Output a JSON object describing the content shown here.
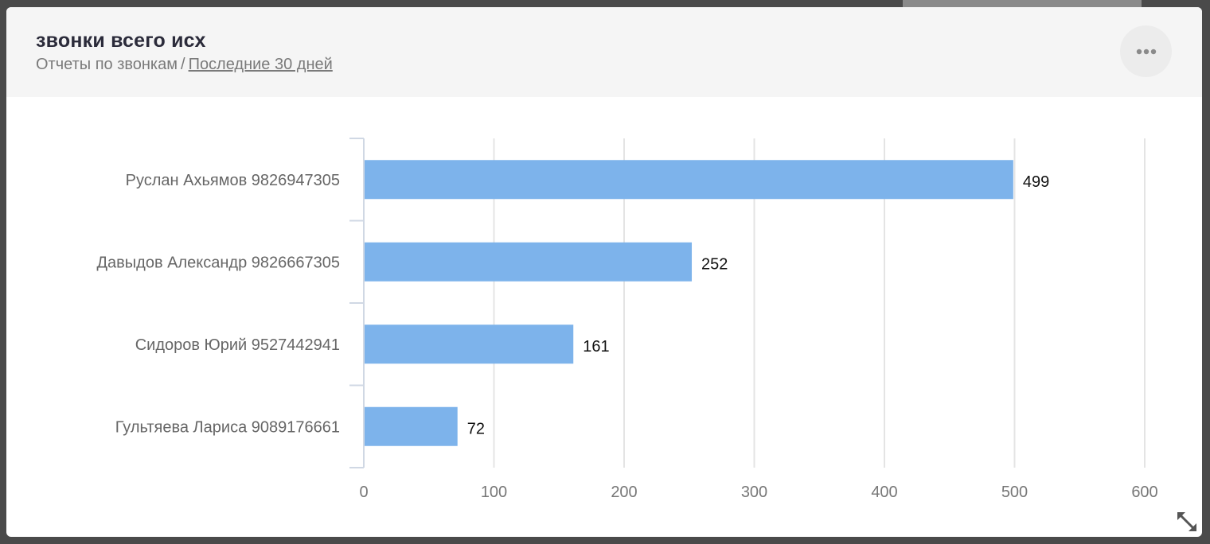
{
  "header": {
    "title": "звонки всего исх",
    "breadcrumb_root": "Отчеты по звонкам",
    "breadcrumb_separator": "/",
    "period_link": "Последние 30 дней"
  },
  "icons": {
    "menu": "more-horizontal-icon",
    "resize": "resize-diagonal-icon"
  },
  "colors": {
    "bar": "#7db3eb",
    "header_bg": "#f5f5f5",
    "grid": "#e4e4e4",
    "axis": "#d0d8e4"
  },
  "chart_data": {
    "type": "bar",
    "orientation": "horizontal",
    "categories": [
      "Руслан Ахьямов 9826947305",
      "Давыдов Александр 9826667305",
      "Сидоров Юрий 9527442941",
      "Гультяева Лариса 9089176661"
    ],
    "values": [
      499,
      252,
      161,
      72
    ],
    "xlim": [
      0,
      600
    ],
    "xticks": [
      0,
      100,
      200,
      300,
      400,
      500,
      600
    ],
    "data_labels": true,
    "grid": true
  }
}
